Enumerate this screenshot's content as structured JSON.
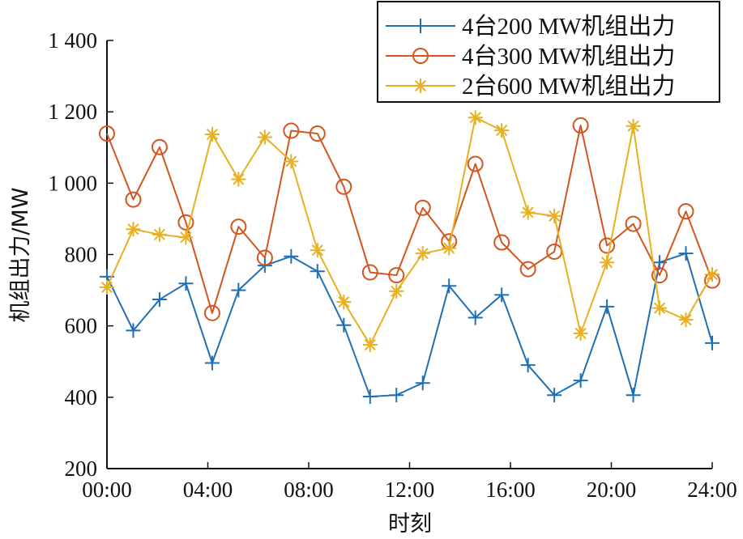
{
  "chart_data": {
    "type": "line",
    "title": "",
    "xlabel": "时刻",
    "ylabel": "机组出力/MW",
    "xlim": [
      0,
      24
    ],
    "ylim": [
      200,
      1400
    ],
    "grid": false,
    "legend_position": "top-right",
    "x_ticks": [
      0,
      4,
      8,
      12,
      16,
      20,
      24
    ],
    "x_tick_labels": [
      "00:00",
      "04:00",
      "08:00",
      "12:00",
      "16:00",
      "20:00",
      "24:00"
    ],
    "y_ticks": [
      200,
      400,
      600,
      800,
      1000,
      1200,
      1400
    ],
    "y_tick_labels": [
      "200",
      "400",
      "600",
      "800",
      "1 000",
      "1 200",
      "1 400"
    ],
    "x": [
      0,
      1.043,
      2.087,
      3.13,
      4.174,
      5.217,
      6.261,
      7.304,
      8.348,
      9.391,
      10.435,
      11.478,
      12.522,
      13.565,
      14.609,
      15.652,
      16.696,
      17.739,
      18.783,
      19.826,
      20.87,
      21.913,
      22.957,
      24
    ],
    "series": [
      {
        "name": "4台200 MW机组出力",
        "color": "#1f6fb4",
        "marker": "plus",
        "values": [
          738,
          587,
          674,
          719,
          496,
          700,
          769,
          795,
          753,
          602,
          402,
          406,
          440,
          712,
          623,
          687,
          490,
          406,
          447,
          654,
          406,
          778,
          803,
          552
        ]
      },
      {
        "name": "4台300 MW机组出力",
        "color": "#d4541c",
        "marker": "circle",
        "values": [
          1139,
          954,
          1101,
          890,
          636,
          878,
          791,
          1147,
          1139,
          990,
          750,
          742,
          931,
          837,
          1054,
          834,
          759,
          808,
          1162,
          825,
          886,
          742,
          921,
          727
        ]
      },
      {
        "name": "2台600 MW机组出力",
        "color": "#e8b020",
        "marker": "asterisk",
        "values": [
          708,
          871,
          856,
          848,
          1137,
          1011,
          1129,
          1061,
          812,
          667,
          547,
          697,
          803,
          818,
          1184,
          1148,
          918,
          908,
          579,
          778,
          1160,
          650,
          617,
          744
        ]
      }
    ]
  }
}
